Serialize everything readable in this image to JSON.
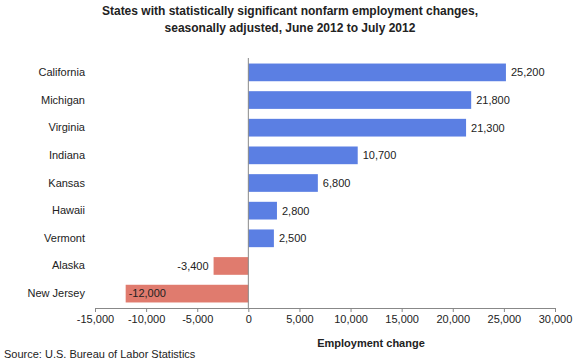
{
  "chart_data": {
    "type": "bar",
    "orientation": "horizontal",
    "title": [
      "States with statistically significant nonfarm employment changes,",
      "seasonally adjusted, June 2012 to July 2012"
    ],
    "x_label": "Employment change",
    "source": "Source: U.S. Bureau of Labor Statistics",
    "categories": [
      "California",
      "Michigan",
      "Virginia",
      "Indiana",
      "Kansas",
      "Hawaii",
      "Vermont",
      "Alaska",
      "New Jersey"
    ],
    "values": [
      25200,
      21800,
      21300,
      10700,
      6800,
      2800,
      2500,
      -3400,
      -12000
    ],
    "value_labels": [
      "25,200",
      "21,800",
      "21,300",
      "10,700",
      "6,800",
      "2,800",
      "2,500",
      "-3,400",
      "-12,000"
    ],
    "colors": [
      "#5b7fe3",
      "#5b7fe3",
      "#5b7fe3",
      "#5b7fe3",
      "#5b7fe3",
      "#5b7fe3",
      "#5b7fe3",
      "#e07b6e",
      "#e07b6e"
    ],
    "data_labels": true,
    "grid": false,
    "xlim": [
      -15000,
      30000
    ],
    "xticks": [
      {
        "value": -15000,
        "label": "-15,000"
      },
      {
        "value": -10000,
        "label": "-10,000"
      },
      {
        "value": -5000,
        "label": "-5,000"
      },
      0,
      {
        "value": 5000,
        "label": "5,000"
      },
      {
        "value": 10000,
        "label": "10,000"
      },
      {
        "value": 15000,
        "label": "15,000"
      },
      {
        "value": 20000,
        "label": "20,000"
      },
      {
        "value": 25000,
        "label": "25,000"
      },
      {
        "value": 30000,
        "label": "30,000"
      }
    ]
  }
}
